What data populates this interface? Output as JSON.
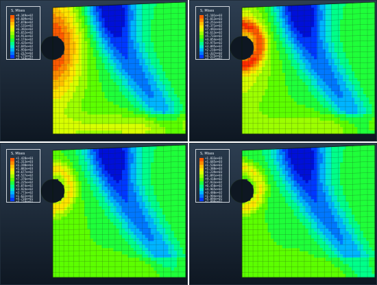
{
  "colors": {
    "background_top": "#2d3e51",
    "background_bottom": "#0e1722",
    "contour": [
      "#ff2d00",
      "#ff5a00",
      "#ff8c00",
      "#ffbf00",
      "#ffe600",
      "#d8ff00",
      "#9cff00",
      "#5cff00",
      "#1fff3a",
      "#00ff8a",
      "#00e6d2",
      "#00b4ff",
      "#0078ff",
      "#0038ff",
      "#0010d8"
    ],
    "mesh_line": "#1b2a1b"
  },
  "panels": [
    {
      "title": "S, Mises",
      "legend_values": [
        "+9.349e+02",
        "+8.609e+02",
        "+7.870e+02",
        "+7.131e+02",
        "+6.392e+02",
        "+5.652e+02",
        "+4.913e+02",
        "+4.174e+02",
        "+3.435e+02",
        "+2.695e+02",
        "+1.956e+02",
        "+1.217e+02",
        "+4.775e+01",
        "+4.549e+01"
      ]
    },
    {
      "title": "S, Mises",
      "legend_values": [
        "+1.101e+03",
        "+1.013e+03",
        "+9.251e+02",
        "+8.371e+02",
        "+7.492e+02",
        "+6.613e+02",
        "+5.733e+02",
        "+4.854e+02",
        "+3.975e+02",
        "+3.095e+02",
        "+2.216e+02",
        "+1.337e+02",
        "+4.575e+01",
        "+4.571e+01"
      ]
    },
    {
      "title": "S, Mises",
      "legend_values": [
        "+1.428e+03",
        "+1.313e+03",
        "+1.198e+03",
        "+1.083e+03",
        "+9.677e+02",
        "+8.527e+02",
        "+7.376e+02",
        "+6.225e+02",
        "+5.074e+02",
        "+3.924e+02",
        "+2.773e+02",
        "+1.622e+02",
        "+4.716e+01",
        "+4.710e+01"
      ]
    },
    {
      "title": "S, Mises",
      "legend_values": [
        "+1.833e+03",
        "+1.685e+03",
        "+1.536e+03",
        "+1.388e+03",
        "+1.239e+03",
        "+1.091e+03",
        "+9.418e+02",
        "+7.933e+02",
        "+6.450e+02",
        "+4.965e+02",
        "+3.480e+02",
        "+1.994e+02",
        "+5.094e+01",
        "+2.090e+01"
      ]
    }
  ]
}
